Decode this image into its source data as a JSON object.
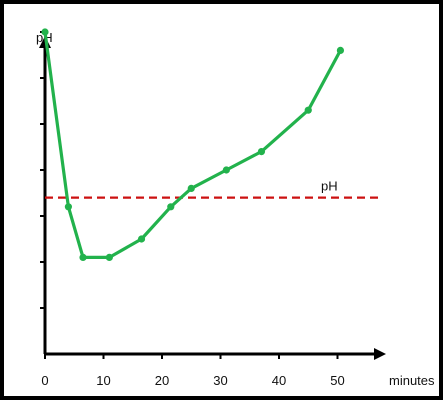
{
  "chart_data": {
    "type": "line",
    "title": "",
    "ylabel": "pH",
    "xlabel": "minutes",
    "xlim": [
      0,
      55
    ],
    "ylim": [
      0,
      10
    ],
    "grid": false,
    "x_ticks": [
      "0",
      "10",
      "20",
      "30",
      "40",
      "50"
    ],
    "x_tick_values": [
      0,
      10,
      20,
      30,
      40,
      50
    ],
    "y_tick_values": [
      1,
      2,
      3,
      4,
      5,
      6,
      7,
      8
    ],
    "series": [
      {
        "color": "#22b24c",
        "x": [
          0,
          4,
          6.5,
          11,
          16.5,
          21.5,
          25,
          31,
          37,
          45,
          50.5
        ],
        "y": [
          7,
          3.2,
          2.1,
          2.1,
          2.5,
          3.2,
          3.6,
          4.0,
          4.4,
          5.3,
          6.6
        ]
      }
    ],
    "reference_line": {
      "label": "pH",
      "y": 3.4,
      "color": "#cc1111",
      "style": "dashed"
    }
  }
}
